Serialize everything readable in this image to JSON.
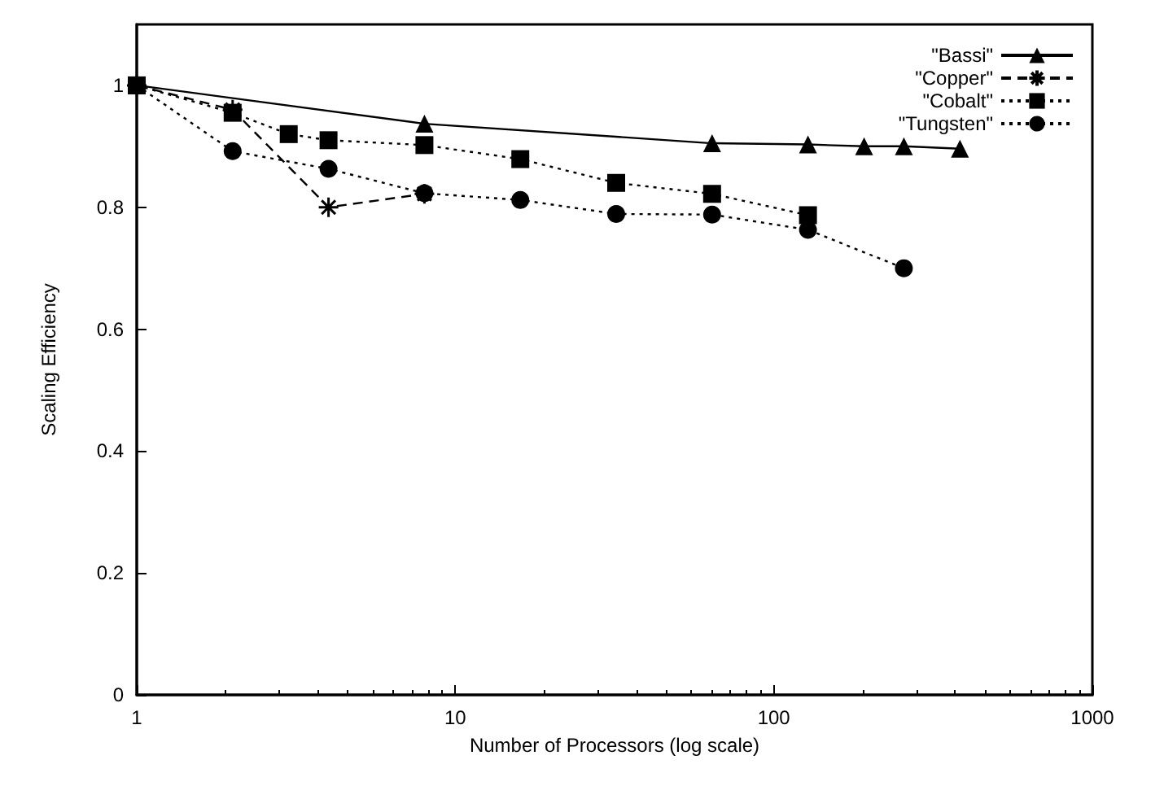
{
  "chart_data": {
    "type": "line",
    "xlabel": "Number of Processors (log scale)",
    "ylabel": "Scaling Efficiency",
    "log": "x",
    "xlim": [
      1,
      1000
    ],
    "xticks": [
      1,
      10,
      100,
      1000
    ],
    "ylim": [
      0,
      1.1
    ],
    "yticks": [
      0,
      0.2,
      0.4,
      0.6,
      0.8,
      1
    ],
    "grid": false,
    "legend": "top right",
    "series": [
      {
        "name": "\"Bassi\"",
        "color": "#000000",
        "marker": "triangle",
        "line_style": "solid",
        "x": [
          1,
          8,
          64,
          128,
          192,
          256,
          384
        ],
        "values": [
          1.0,
          0.937,
          0.905,
          0.903,
          0.9,
          0.9,
          0.896
        ]
      },
      {
        "name": "\"Copper\"",
        "color": "#000000",
        "marker": "cross",
        "line_style": "dashed",
        "x": [
          1,
          2,
          4,
          8
        ],
        "values": [
          1.0,
          0.96,
          0.8,
          0.822
        ]
      },
      {
        "name": "\"Cobalt\"",
        "color": "#000000",
        "marker": "square",
        "line_style": "dotted",
        "x": [
          1,
          2,
          3,
          4,
          8,
          16,
          32,
          64,
          128
        ],
        "values": [
          1.0,
          0.955,
          0.92,
          0.91,
          0.902,
          0.879,
          0.84,
          0.822,
          0.787
        ]
      },
      {
        "name": "\"Tungsten\"",
        "color": "#000000",
        "marker": "circle",
        "line_style": "dotted",
        "x": [
          1,
          2,
          4,
          8,
          16,
          32,
          64,
          128,
          256
        ],
        "values": [
          1.0,
          0.892,
          0.863,
          0.823,
          0.812,
          0.789,
          0.788,
          0.763,
          0.7
        ]
      }
    ]
  }
}
